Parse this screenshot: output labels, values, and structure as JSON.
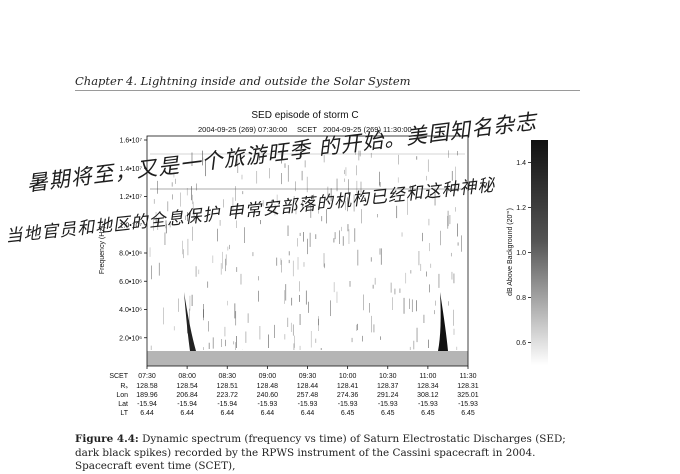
{
  "header": {
    "chapter": "Chapter 4.  Lightning inside and outside the Solar System"
  },
  "figure": {
    "title": "SED episode of storm C",
    "time_range": {
      "start": "2004-09-25 (269) 07:30:00",
      "middle_label": "SCET",
      "end": "2004-09-25 (269) 11:30:00"
    },
    "y_axis_label": "Frequency (Hz)",
    "y_ticks": [
      {
        "label": "2.0•10⁶",
        "value": 2000000
      },
      {
        "label": "4.0•10⁶",
        "value": 4000000
      },
      {
        "label": "6.0•10⁶",
        "value": 6000000
      },
      {
        "label": "8.0•10⁶",
        "value": 8000000
      },
      {
        "label": "1.0•10⁷",
        "value": 10000000
      },
      {
        "label": "1.2•10⁷",
        "value": 12000000
      },
      {
        "label": "1.4•10⁷",
        "value": 14000000
      },
      {
        "label": "1.6•10⁷",
        "value": 16000000
      }
    ],
    "colorbar": {
      "label": "dB Above Background (20'°)",
      "ticks": [
        {
          "label": "1.4",
          "value": 1.4
        },
        {
          "label": "1.2",
          "value": 1.2
        },
        {
          "label": "1.0",
          "value": 1.0
        },
        {
          "label": "0.8",
          "value": 0.8
        },
        {
          "label": "0.6",
          "value": 0.6
        }
      ]
    },
    "ephemeris": {
      "row_labels": [
        "SCET",
        "Rₛ",
        "Lon",
        "Lat",
        "LT"
      ],
      "columns": [
        {
          "SCET": "07:30",
          "Rs": "128.58",
          "Lon": "189.96",
          "Lat": "-15.94",
          "LT": "6.44"
        },
        {
          "SCET": "08:00",
          "Rs": "128.54",
          "Lon": "206.84",
          "Lat": "-15.94",
          "LT": "6.44"
        },
        {
          "SCET": "08:30",
          "Rs": "128.51",
          "Lon": "223.72",
          "Lat": "-15.94",
          "LT": "6.44"
        },
        {
          "SCET": "09:00",
          "Rs": "128.48",
          "Lon": "240.60",
          "Lat": "-15.93",
          "LT": "6.44"
        },
        {
          "SCET": "09:30",
          "Rs": "128.44",
          "Lon": "257.48",
          "Lat": "-15.93",
          "LT": "6.44"
        },
        {
          "SCET": "10:00",
          "Rs": "128.41",
          "Lon": "274.36",
          "Lat": "-15.93",
          "LT": "6.45"
        },
        {
          "SCET": "10:30",
          "Rs": "128.37",
          "Lon": "291.24",
          "Lat": "-15.93",
          "LT": "6.45"
        },
        {
          "SCET": "11:00",
          "Rs": "128.34",
          "Lon": "308.12",
          "Lat": "-15.93",
          "LT": "6.45"
        },
        {
          "SCET": "11:30",
          "Rs": "128.31",
          "Lon": "325.01",
          "Lat": "-15.93",
          "LT": "6.45"
        }
      ]
    }
  },
  "caption": {
    "label": "Figure 4.4:",
    "text": " Dynamic spectrum (frequency vs time) of Saturn Electrostatic Discharges (SED; dark black spikes) recorded by the RPWS instrument of the Cassini spacecraft in 2004.  Spacecraft event time (SCET),"
  },
  "handwriting": {
    "line1": "暑期将至，又是一个旅游旺季 的开始。美国知名杂志",
    "line2": "当地官员和地区的全息保护 申常安部落的机构已经和这种神秘"
  }
}
